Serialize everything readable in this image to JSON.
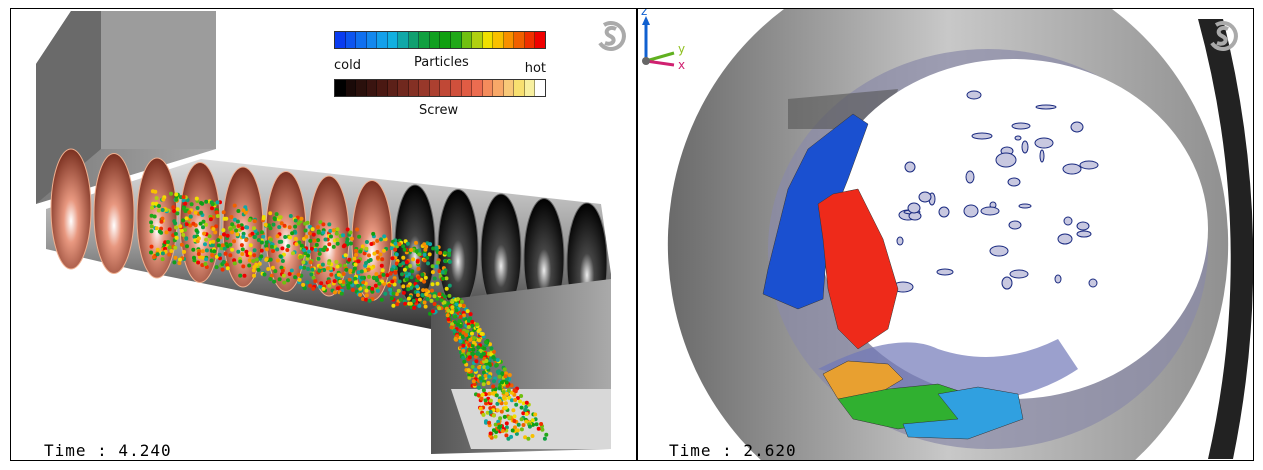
{
  "left_panel": {
    "time_label": "Time : 4.240",
    "legend": {
      "particles_title": "Particles",
      "screw_title": "Screw",
      "cold_label": "cold",
      "hot_label": "hot",
      "particles_colors": [
        "#0a3cf0",
        "#0d55f0",
        "#1070f0",
        "#1488ee",
        "#14a0ea",
        "#12b0e0",
        "#10a8a8",
        "#10a070",
        "#10a040",
        "#10a020",
        "#10a010",
        "#20a818",
        "#70c010",
        "#b0d010",
        "#f0e000",
        "#f8c000",
        "#f89000",
        "#f06000",
        "#f03000",
        "#f00000"
      ],
      "screw_colors": [
        "#000000",
        "#1a0a08",
        "#2a100c",
        "#3a1410",
        "#4a1812",
        "#5c2018",
        "#70281e",
        "#843024",
        "#98382a",
        "#ac4030",
        "#c04836",
        "#d0503c",
        "#e05c44",
        "#ec6c50",
        "#f48c5c",
        "#f8a868",
        "#f8c878",
        "#f8e070",
        "#f8f0a0",
        "#ffffff"
      ]
    }
  },
  "right_panel": {
    "time_label": "Time : 2.620",
    "axes": {
      "z": "z",
      "y": "y",
      "x": "x"
    }
  },
  "colors": {
    "particle_blue": "#1a50d0",
    "particle_red": "#ee2a1a",
    "particle_orange": "#e8a030",
    "particle_green": "#30b030",
    "particle_cyan": "#30a0e0",
    "fluid": "#1a2a80"
  }
}
